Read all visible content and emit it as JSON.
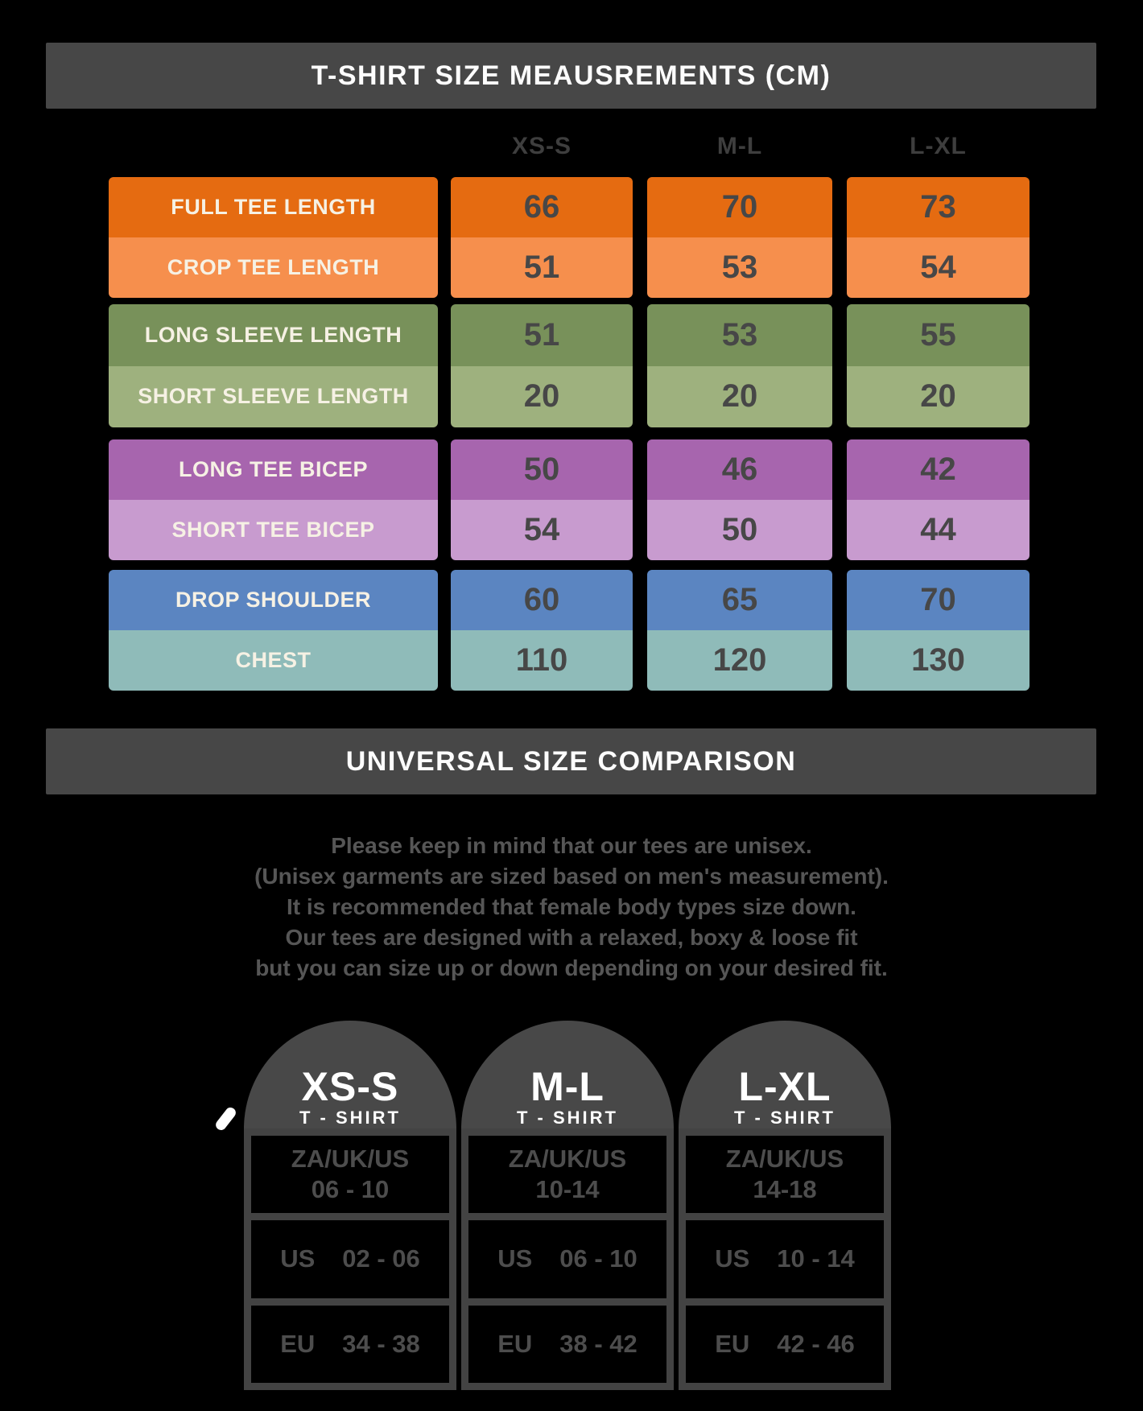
{
  "measurements_header": {
    "title": "T-SHIRT SIZE MEAUSREMENTS (CM)"
  },
  "size_table": {
    "columns": [
      "XS-S",
      "M-L",
      "L-XL"
    ],
    "rows": [
      {
        "label": "FULL TEE LENGTH",
        "values": [
          "66",
          "70",
          "73"
        ],
        "bg": "#e56b11"
      },
      {
        "label": "CROP TEE LENGTH",
        "values": [
          "51",
          "53",
          "54"
        ],
        "bg": "#f68f4d"
      },
      {
        "label": "LONG SLEEVE LENGTH",
        "values": [
          "51",
          "53",
          "55"
        ],
        "bg": "#78915a"
      },
      {
        "label": "SHORT SLEEVE LENGTH",
        "values": [
          "20",
          "20",
          "20"
        ],
        "bg": "#9eb17e"
      },
      {
        "label": "LONG TEE BICEP",
        "values": [
          "50",
          "46",
          "42"
        ],
        "bg": "#a765ae"
      },
      {
        "label": "SHORT TEE BICEP",
        "values": [
          "54",
          "50",
          "44"
        ],
        "bg": "#c89bcf"
      },
      {
        "label": "DROP SHOULDER",
        "values": [
          "60",
          "65",
          "70"
        ],
        "bg": "#5b85c1"
      },
      {
        "label": "CHEST",
        "values": [
          "110",
          "120",
          "130"
        ],
        "bg": "#8fbbb9"
      }
    ]
  },
  "comparison": {
    "title": "UNIVERSAL SIZE COMPARISON",
    "note_lines": [
      "Please keep in mind that our tees are unisex.",
      "(Unisex garments are sized based on men's measurement).",
      "It is recommended that female body types size down.",
      "Our tees are designed with a relaxed, boxy & loose fit",
      "but you can size up or down depending on your desired fit."
    ],
    "cards": [
      {
        "size": "XS-S",
        "garment": "T - SHIRT",
        "za_uk_us_label": "ZA/UK/US",
        "za_uk_us_value": "06 - 10",
        "us_label": "US",
        "us_value": "02 - 06",
        "eu_label": "EU",
        "eu_value": "34 - 38"
      },
      {
        "size": "M-L",
        "garment": "T - SHIRT",
        "za_uk_us_label": "ZA/UK/US",
        "za_uk_us_value": "10-14",
        "us_label": "US",
        "us_value": "06 - 10",
        "eu_label": "EU",
        "eu_value": "38 - 42"
      },
      {
        "size": "L-XL",
        "garment": "T - SHIRT",
        "za_uk_us_label": "ZA/UK/US",
        "za_uk_us_value": "14-18",
        "us_label": "US",
        "us_value": "10 - 14",
        "eu_label": "EU",
        "eu_value": "42 - 46"
      }
    ]
  },
  "colors": {
    "background": "#000000",
    "header_bar": "#474747",
    "arch_gray": "#484848",
    "grid_border_gray": "#434343",
    "label_text_cream": "#f6f1e4",
    "value_text_gray": "#474747",
    "muted_text_gray": "#565656"
  },
  "chart_data": [
    {
      "type": "table",
      "title": "T-SHIRT SIZE MEAUSREMENTS (CM)",
      "columns": [
        "",
        "XS-S",
        "M-L",
        "L-XL"
      ],
      "rows": [
        [
          "FULL TEE LENGTH",
          66,
          70,
          73
        ],
        [
          "CROP TEE LENGTH",
          51,
          53,
          54
        ],
        [
          "LONG SLEEVE LENGTH",
          51,
          53,
          55
        ],
        [
          "SHORT SLEEVE LENGTH",
          20,
          20,
          20
        ],
        [
          "LONG TEE BICEP",
          50,
          46,
          42
        ],
        [
          "SHORT TEE BICEP",
          54,
          50,
          44
        ],
        [
          "DROP SHOULDER",
          60,
          65,
          70
        ],
        [
          "CHEST",
          110,
          120,
          130
        ]
      ]
    },
    {
      "type": "table",
      "title": "UNIVERSAL SIZE COMPARISON",
      "columns": [
        "",
        "XS-S T-SHIRT",
        "M-L T-SHIRT",
        "L-XL T-SHIRT"
      ],
      "rows": [
        [
          "ZA/UK/US",
          "06 - 10",
          "10-14",
          "14-18"
        ],
        [
          "US",
          "02 - 06",
          "06 - 10",
          "10 - 14"
        ],
        [
          "EU",
          "34 - 38",
          "38 - 42",
          "42 - 46"
        ]
      ]
    }
  ]
}
